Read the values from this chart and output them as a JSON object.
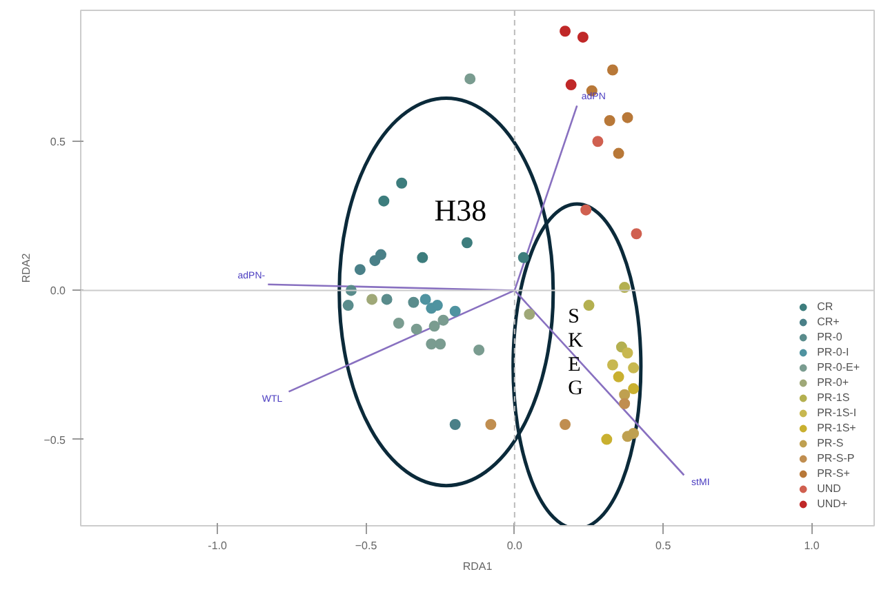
{
  "chart_data": {
    "type": "scatter",
    "xlabel": "RDA1",
    "ylabel": "RDA2",
    "xlim": [
      -1.46,
      1.21
    ],
    "ylim": [
      -0.79,
      0.94
    ],
    "xticks": [
      {
        "value": -1,
        "label": "-1.0"
      },
      -0.5,
      {
        "value": 0,
        "label": "0.0"
      },
      0.5,
      {
        "value": 1,
        "label": "1.0"
      }
    ],
    "yticks": [
      -0.5,
      {
        "value": 0,
        "label": "0.0"
      },
      0.5
    ],
    "grid": false,
    "legend": "bottom right",
    "marker": "circle",
    "ref_lines": [
      {
        "axis": "x",
        "value": 0,
        "line_style": "dashed",
        "color": "#bbbbbb"
      },
      {
        "axis": "y",
        "value": 0,
        "line_style": "solid",
        "color": "#cccccc"
      }
    ],
    "annotations": [
      "H38",
      "S",
      "K",
      "E",
      "G"
    ],
    "series": [
      {
        "type": "line",
        "marker": "none",
        "name": "adPN",
        "color": "#8870c0",
        "x": [
          0,
          0.21
        ],
        "values": [
          0,
          0.62
        ]
      },
      {
        "type": "line",
        "marker": "none",
        "name": "adPN-",
        "color": "#8870c0",
        "x": [
          0,
          -0.83
        ],
        "values": [
          0,
          0.02
        ]
      },
      {
        "type": "line",
        "marker": "none",
        "name": "WTL",
        "color": "#8870c0",
        "x": [
          0,
          -0.76
        ],
        "values": [
          0,
          -0.34
        ]
      },
      {
        "type": "line",
        "marker": "none",
        "name": "stMI",
        "color": "#8870c0",
        "x": [
          0,
          0.57
        ],
        "values": [
          0,
          -0.62
        ]
      },
      {
        "name": "CR",
        "color": "#3d7d7d",
        "x": [
          -0.38,
          -0.44,
          -0.31,
          -0.16,
          0.03
        ],
        "values": [
          0.36,
          0.3,
          0.11,
          0.16,
          0.11
        ]
      },
      {
        "name": "CR+",
        "color": "#4a8088",
        "x": [
          -0.45,
          -0.47,
          -0.52,
          -0.2
        ],
        "values": [
          0.12,
          0.1,
          0.07,
          -0.45
        ]
      },
      {
        "name": "PR-0",
        "color": "#5a8c8c",
        "x": [
          -0.55,
          -0.56,
          -0.43,
          -0.34
        ],
        "values": [
          0.0,
          -0.05,
          -0.03,
          -0.04
        ]
      },
      {
        "name": "PR-0-I",
        "color": "#4f93a0",
        "x": [
          -0.3,
          -0.28,
          -0.26,
          -0.2
        ],
        "values": [
          -0.03,
          -0.06,
          -0.05,
          -0.07
        ]
      },
      {
        "name": "PR-0-E+",
        "color": "#7a9c90",
        "x": [
          -0.24,
          -0.27,
          -0.33,
          -0.39,
          -0.28,
          -0.25,
          -0.12,
          -0.15
        ],
        "values": [
          -0.1,
          -0.12,
          -0.13,
          -0.11,
          -0.18,
          -0.18,
          -0.2,
          0.71
        ]
      },
      {
        "name": "PR-0+",
        "color": "#9fa878",
        "x": [
          -0.48,
          0.05
        ],
        "values": [
          -0.03,
          -0.08
        ]
      },
      {
        "name": "PR-1S",
        "color": "#b4b050",
        "x": [
          0.37,
          0.25,
          0.36
        ],
        "values": [
          0.01,
          -0.05,
          -0.19
        ]
      },
      {
        "name": "PR-1S-I",
        "color": "#c8b850",
        "x": [
          0.38,
          0.33,
          0.4
        ],
        "values": [
          -0.21,
          -0.25,
          -0.26
        ]
      },
      {
        "name": "PR-1S+",
        "color": "#c9b030",
        "x": [
          0.35,
          0.4,
          0.31
        ],
        "values": [
          -0.29,
          -0.33,
          -0.5
        ]
      },
      {
        "name": "PR-S",
        "color": "#bfa050",
        "x": [
          0.37,
          0.38,
          0.4
        ],
        "values": [
          -0.35,
          -0.49,
          -0.48
        ]
      },
      {
        "name": "PR-S-P",
        "color": "#c08e50",
        "x": [
          0.37,
          0.17,
          -0.08
        ],
        "values": [
          -0.38,
          -0.45,
          -0.45
        ]
      },
      {
        "name": "PR-S+",
        "color": "#b87838",
        "x": [
          0.33,
          0.26,
          0.32,
          0.38,
          0.35
        ],
        "values": [
          0.74,
          0.67,
          0.57,
          0.58,
          0.46
        ]
      },
      {
        "name": "UND",
        "color": "#d06050",
        "x": [
          0.24,
          0.41,
          0.28
        ],
        "values": [
          0.27,
          0.19,
          0.5
        ]
      },
      {
        "name": "UND+",
        "color": "#c02828",
        "x": [
          0.17,
          0.23,
          0.19
        ],
        "values": [
          0.87,
          0.85,
          0.69
        ]
      }
    ]
  }
}
